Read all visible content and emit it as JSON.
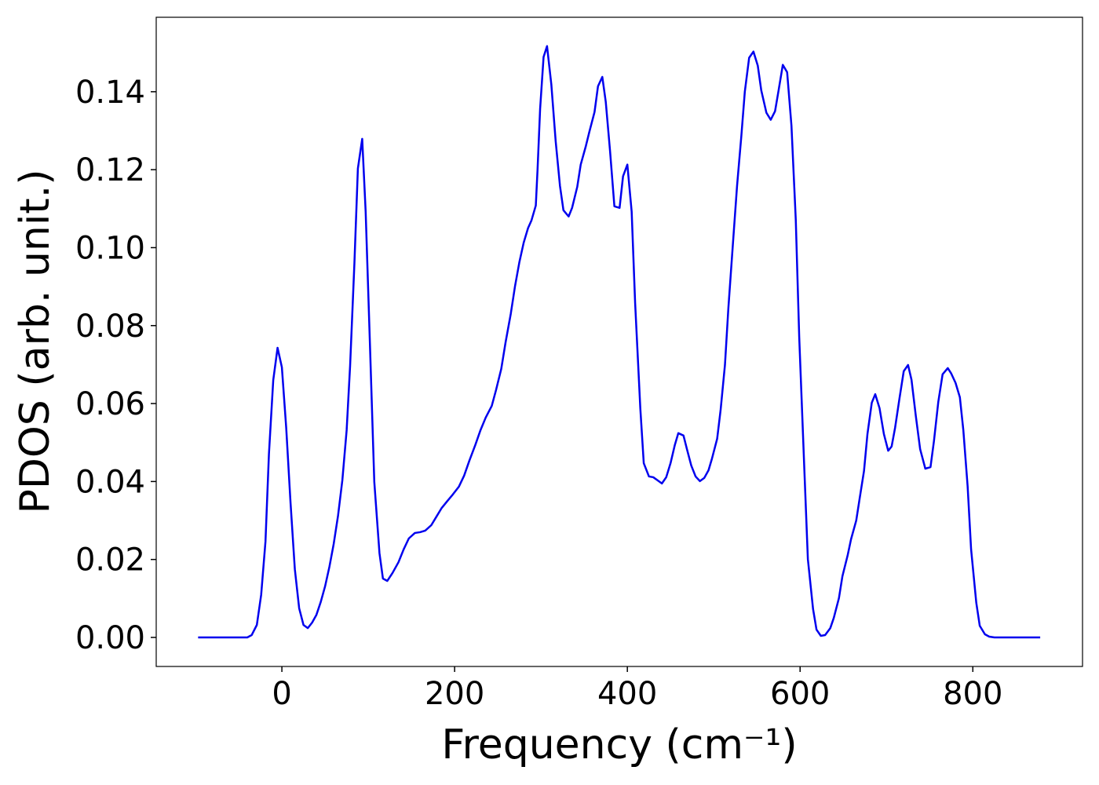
{
  "chart_data": {
    "type": "line",
    "xlabel": "Frequency (cm⁻¹)",
    "ylabel": "PDOS (arb. unit.)",
    "color": "#0000ee",
    "x": [
      -97,
      -40,
      -35,
      -29,
      -24,
      -19,
      -15,
      -10,
      -5,
      0,
      5,
      10,
      15,
      20,
      25,
      30,
      35,
      40,
      45,
      50,
      55,
      60,
      65,
      70,
      75,
      79,
      84,
      88,
      93,
      97,
      102,
      107,
      113,
      117,
      122,
      128,
      135,
      141,
      147,
      154,
      160,
      166,
      173,
      179,
      185,
      192,
      198,
      205,
      211,
      217,
      224,
      230,
      236,
      243,
      248,
      254,
      259,
      265,
      270,
      275,
      280,
      285,
      289,
      294,
      296,
      299,
      303,
      307,
      312,
      317,
      322,
      326,
      332,
      336,
      342,
      346,
      352,
      356,
      362,
      366,
      371,
      375,
      380,
      385,
      391,
      395,
      400,
      405,
      409,
      415,
      419,
      425,
      430,
      435,
      440,
      445,
      450,
      455,
      459,
      465,
      469,
      474,
      479,
      484,
      489,
      494,
      498,
      504,
      508,
      513,
      517,
      522,
      527,
      532,
      536,
      541,
      546,
      551,
      555,
      561,
      566,
      571,
      575,
      580,
      585,
      590,
      595,
      599,
      605,
      609,
      615,
      619,
      624,
      629,
      635,
      639,
      645,
      649,
      655,
      659,
      665,
      669,
      674,
      678,
      683,
      687,
      692,
      697,
      702,
      706,
      710,
      715,
      720,
      725,
      729,
      734,
      739,
      745,
      751,
      755,
      760,
      765,
      771,
      775,
      780,
      785,
      789,
      794,
      798,
      804,
      808,
      814,
      819,
      825,
      878
    ],
    "values": [
      0,
      0,
      0.0006,
      0.0032,
      0.0109,
      0.0246,
      0.047,
      0.066,
      0.0743,
      0.0693,
      0.0538,
      0.0346,
      0.0175,
      0.0075,
      0.0032,
      0.0024,
      0.0038,
      0.0058,
      0.0091,
      0.0131,
      0.0181,
      0.024,
      0.0312,
      0.0403,
      0.0532,
      0.0697,
      0.0961,
      0.1203,
      0.1279,
      0.1092,
      0.0749,
      0.0399,
      0.0216,
      0.0151,
      0.0145,
      0.0165,
      0.0193,
      0.0226,
      0.0254,
      0.0268,
      0.027,
      0.0274,
      0.0288,
      0.031,
      0.0332,
      0.0351,
      0.0367,
      0.0387,
      0.0415,
      0.0453,
      0.0494,
      0.0532,
      0.0564,
      0.0594,
      0.0635,
      0.0689,
      0.0757,
      0.083,
      0.0902,
      0.0963,
      0.1013,
      0.105,
      0.107,
      0.1108,
      0.1199,
      0.1356,
      0.1489,
      0.1517,
      0.1418,
      0.1273,
      0.1158,
      0.1096,
      0.108,
      0.1102,
      0.1156,
      0.1213,
      0.1261,
      0.1297,
      0.1348,
      0.1414,
      0.1438,
      0.1374,
      0.1247,
      0.1106,
      0.1102,
      0.1183,
      0.1213,
      0.1092,
      0.0858,
      0.0588,
      0.0447,
      0.0413,
      0.0411,
      0.0403,
      0.0395,
      0.0411,
      0.0447,
      0.0494,
      0.0524,
      0.0518,
      0.0483,
      0.0441,
      0.0413,
      0.0401,
      0.0409,
      0.0429,
      0.0459,
      0.051,
      0.0584,
      0.0699,
      0.0846,
      0.1003,
      0.1158,
      0.1287,
      0.14,
      0.1487,
      0.1503,
      0.1467,
      0.1404,
      0.1346,
      0.1328,
      0.135,
      0.1402,
      0.1469,
      0.145,
      0.1313,
      0.1072,
      0.077,
      0.0427,
      0.0201,
      0.0073,
      0.002,
      0.0004,
      0.0006,
      0.0024,
      0.005,
      0.0101,
      0.0157,
      0.021,
      0.0252,
      0.03,
      0.0357,
      0.0427,
      0.0522,
      0.0602,
      0.0624,
      0.0588,
      0.0522,
      0.0479,
      0.049,
      0.0538,
      0.0612,
      0.0683,
      0.0699,
      0.0661,
      0.0568,
      0.0483,
      0.0433,
      0.0437,
      0.0504,
      0.0604,
      0.0675,
      0.0691,
      0.0677,
      0.0653,
      0.0616,
      0.0532,
      0.0387,
      0.0226,
      0.0089,
      0.003,
      0.0008,
      0.0002,
      0,
      0
    ],
    "xlim": [
      -145.5,
      927
    ],
    "ylim": [
      -0.00745,
      0.1591
    ],
    "xticks": [
      0,
      200,
      400,
      600,
      800
    ],
    "yticks": [
      {
        "value": 0,
        "label": "0.00"
      },
      {
        "value": 0.02,
        "label": "0.02"
      },
      {
        "value": 0.04,
        "label": "0.04"
      },
      {
        "value": 0.06,
        "label": "0.06"
      },
      {
        "value": 0.08,
        "label": "0.08"
      },
      {
        "value": 0.1,
        "label": "0.10"
      },
      {
        "value": 0.12,
        "label": "0.12"
      },
      {
        "value": 0.14,
        "label": "0.14"
      }
    ]
  }
}
